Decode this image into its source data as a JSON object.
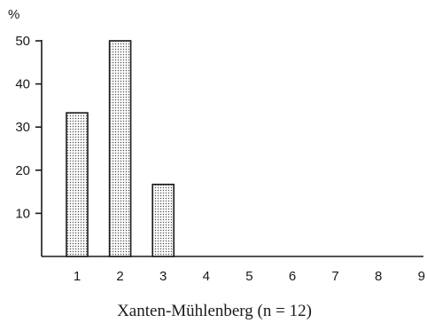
{
  "chart_data": {
    "type": "bar",
    "categories": [
      "1",
      "2",
      "3",
      "4",
      "5",
      "6",
      "7",
      "8",
      "9"
    ],
    "values": [
      33.3,
      50,
      16.7,
      0,
      0,
      0,
      0,
      0,
      0
    ],
    "ylabel": "%",
    "xlabel": "Xanten-Mühlenberg (n = 12)",
    "yticks": [
      "10",
      "20",
      "30",
      "40",
      "50"
    ],
    "ylim": [
      0,
      50
    ],
    "grid": false,
    "legend": "none",
    "bar_fill": "dotted gray",
    "colors": {
      "ink": "#1a1a1a",
      "bar_dots": "#555555",
      "background": "#ffffff"
    }
  }
}
